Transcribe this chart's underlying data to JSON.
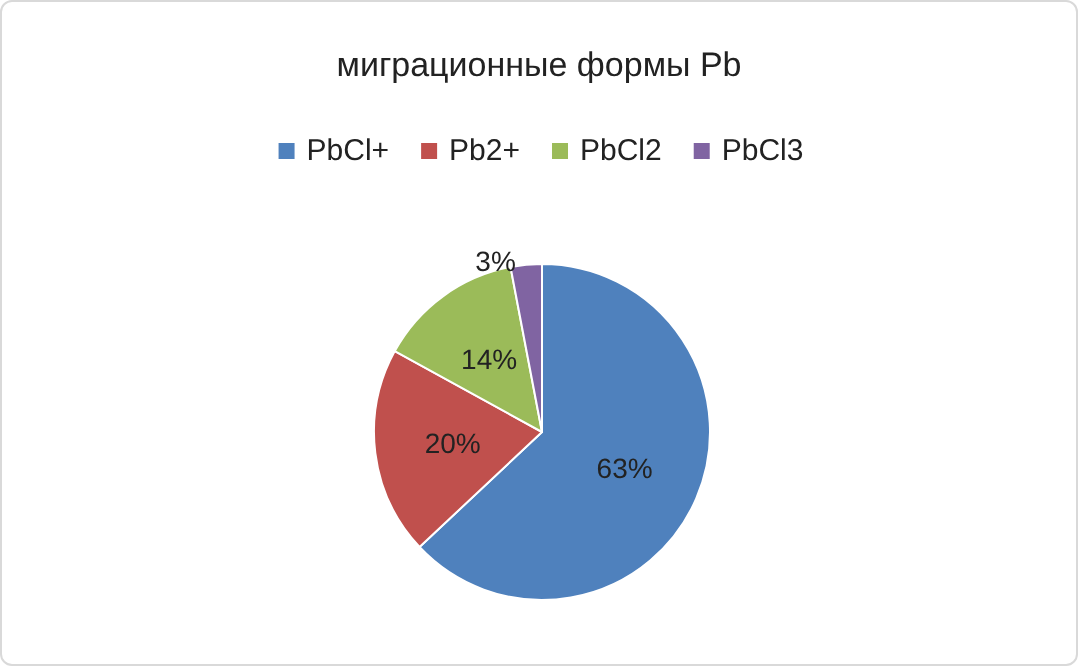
{
  "chart_data": {
    "type": "pie",
    "title": "миграционные формы Pb",
    "categories": [
      "PbCl+",
      "Pb2+",
      "PbCl2",
      "PbCl3"
    ],
    "values": [
      63,
      20,
      14,
      3
    ],
    "colors": [
      "#4f81bd",
      "#c0504d",
      "#9bbb59",
      "#8064a2"
    ],
    "value_labels": [
      "63%",
      "20%",
      "14%",
      "3%"
    ],
    "legend": "top"
  }
}
